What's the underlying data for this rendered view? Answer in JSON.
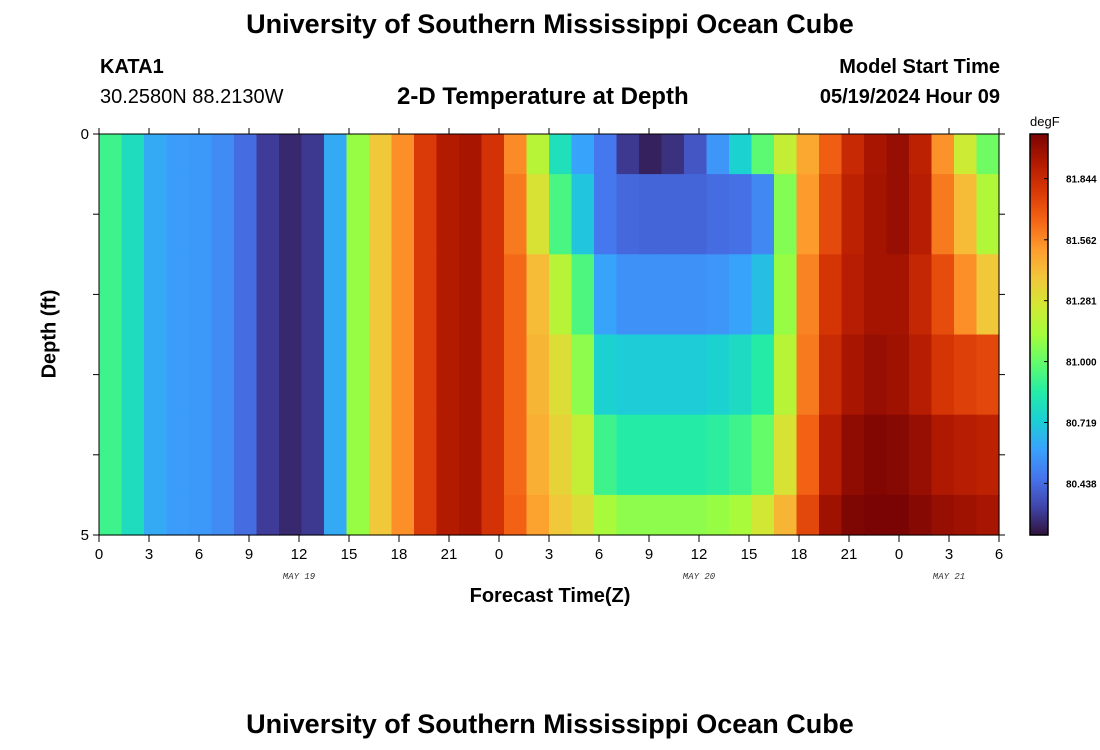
{
  "header": {
    "title": "University of Southern Mississippi Ocean Cube",
    "station_id": "KATA1",
    "station_coords": "30.2580N  88.2130W",
    "subtitle": "2-D Temperature at Depth",
    "model_start_label": "Model Start Time",
    "model_start_value": "05/19/2024 Hour 09"
  },
  "footer": {
    "title": "University of Southern Mississippi Ocean Cube"
  },
  "chart_data": {
    "type": "heatmap",
    "title": "2-D Temperature at Depth",
    "xlabel": "Forecast Time(Z)",
    "ylabel": "Depth (ft)",
    "x_tick_labels": [
      "0",
      "3",
      "6",
      "9",
      "12",
      "15",
      "18",
      "21",
      "0",
      "3",
      "6",
      "9",
      "12",
      "15",
      "18",
      "21",
      "0",
      "3",
      "6"
    ],
    "x_day_labels": [
      {
        "label": "MAY 19",
        "at_tick": 4
      },
      {
        "label": "MAY 20",
        "at_tick": 12
      },
      {
        "label": "MAY 21",
        "at_tick": 17
      }
    ],
    "y_tick_labels": [
      "0",
      "5"
    ],
    "ylim": [
      0,
      5
    ],
    "colorbar": {
      "unit": "degF",
      "ticks": [
        81.844,
        81.562,
        81.281,
        81.0,
        80.719,
        80.438
      ],
      "tick_labels": [
        "81.844",
        "81.562",
        "81.281",
        "81.000",
        "80.719",
        "80.438"
      ],
      "range": [
        80.2,
        82.05
      ],
      "colors": [
        "#30123b",
        "#4145ab",
        "#4675ed",
        "#39a2fc",
        "#1bcfd4",
        "#24eca6",
        "#61fc6c",
        "#a4fc3b",
        "#d1e834",
        "#f3c63a",
        "#fe9b2d",
        "#f36315",
        "#d93806",
        "#b11901",
        "#7a0403"
      ]
    },
    "depth_rows": [
      {
        "depth_ft": 0.25,
        "temps": [
          80.92,
          80.79,
          80.62,
          80.58,
          80.57,
          80.53,
          80.44,
          80.31,
          80.26,
          80.3,
          80.62,
          81.1,
          81.38,
          81.55,
          81.78,
          81.91,
          81.94,
          81.81,
          81.56,
          81.18,
          80.8,
          80.6,
          80.47,
          80.3,
          80.24,
          80.28,
          80.38,
          80.56,
          80.74,
          80.98,
          81.22,
          81.48,
          81.67,
          81.85,
          81.94,
          81.98,
          81.88,
          81.54,
          81.24,
          81.02
        ]
      },
      {
        "depth_ft": 1.0,
        "temps": [
          80.92,
          80.79,
          80.62,
          80.58,
          80.57,
          80.53,
          80.44,
          80.31,
          80.26,
          80.3,
          80.62,
          81.1,
          81.38,
          81.55,
          81.78,
          81.91,
          81.94,
          81.81,
          81.6,
          81.28,
          80.94,
          80.7,
          80.47,
          80.43,
          80.42,
          80.42,
          80.42,
          80.44,
          80.45,
          80.52,
          81.06,
          81.52,
          81.73,
          81.88,
          81.95,
          81.98,
          81.9,
          81.6,
          81.42,
          81.16
        ]
      },
      {
        "depth_ft": 2.0,
        "temps": [
          80.92,
          80.79,
          80.62,
          80.58,
          80.57,
          80.53,
          80.44,
          80.31,
          80.26,
          80.3,
          80.62,
          81.1,
          81.38,
          81.55,
          81.78,
          81.91,
          81.94,
          81.81,
          81.64,
          81.42,
          81.18,
          80.95,
          80.6,
          80.55,
          80.55,
          80.55,
          80.55,
          80.56,
          80.6,
          80.68,
          81.1,
          81.58,
          81.8,
          81.9,
          81.95,
          81.95,
          81.86,
          81.72,
          81.55,
          81.38
        ]
      },
      {
        "depth_ft": 3.0,
        "temps": [
          80.92,
          80.79,
          80.62,
          80.58,
          80.57,
          80.53,
          80.44,
          80.31,
          80.26,
          80.3,
          80.62,
          81.1,
          81.38,
          81.55,
          81.78,
          81.91,
          81.94,
          81.81,
          81.64,
          81.44,
          81.3,
          81.08,
          80.74,
          80.72,
          80.72,
          80.72,
          80.72,
          80.74,
          80.78,
          80.86,
          81.18,
          81.6,
          81.84,
          81.94,
          81.98,
          81.96,
          81.9,
          81.8,
          81.76,
          81.74
        ]
      },
      {
        "depth_ft": 4.0,
        "temps": [
          80.92,
          80.79,
          80.62,
          80.58,
          80.57,
          80.53,
          80.44,
          80.31,
          80.26,
          80.3,
          80.62,
          81.1,
          81.38,
          81.55,
          81.78,
          81.91,
          81.94,
          81.81,
          81.64,
          81.46,
          81.34,
          81.22,
          80.92,
          80.86,
          80.86,
          80.86,
          80.86,
          80.88,
          80.92,
          81.0,
          81.28,
          81.66,
          81.9,
          82.0,
          82.03,
          82.02,
          81.98,
          81.92,
          81.9,
          81.88
        ]
      },
      {
        "depth_ft": 4.75,
        "temps": [
          80.92,
          80.79,
          80.62,
          80.58,
          80.57,
          80.53,
          80.44,
          80.31,
          80.26,
          80.3,
          80.62,
          81.1,
          81.38,
          81.55,
          81.78,
          81.91,
          81.94,
          81.81,
          81.66,
          81.5,
          81.38,
          81.3,
          81.14,
          81.08,
          81.08,
          81.08,
          81.08,
          81.1,
          81.14,
          81.26,
          81.44,
          81.74,
          81.96,
          82.04,
          82.06,
          82.05,
          82.02,
          81.98,
          81.96,
          81.94
        ]
      }
    ]
  }
}
